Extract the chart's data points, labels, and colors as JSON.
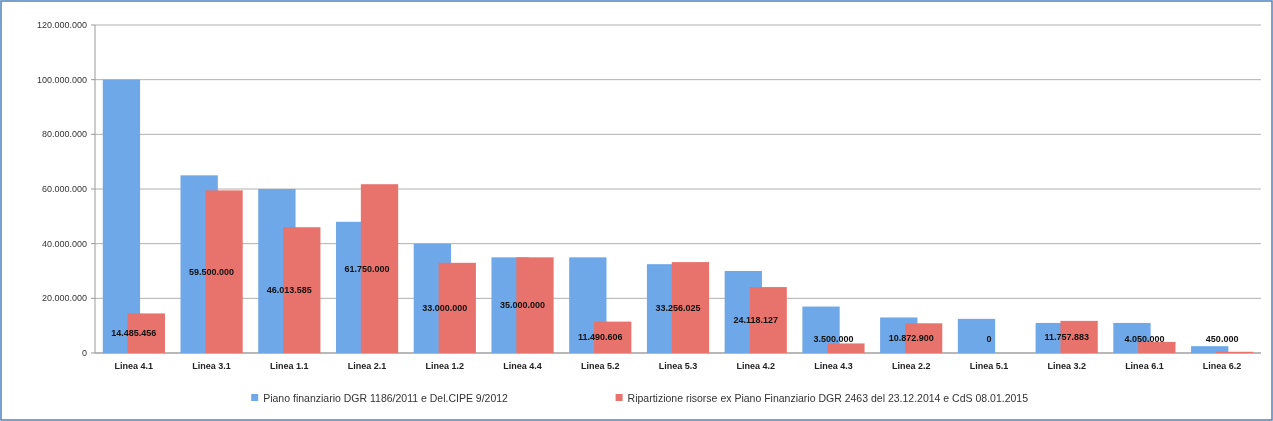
{
  "chart_data": {
    "type": "bar",
    "categories": [
      "Linea 4.1",
      "Linea 3.1",
      "Linea 1.1",
      "Linea 2.1",
      "Linea 1.2",
      "Linea 4.4",
      "Linea 5.2",
      "Linea 5.3",
      "Linea 4.2",
      "Linea 4.3",
      "Linea 2.2",
      "Linea 5.1",
      "Linea 3.2",
      "Linea 6.1",
      "Linea 6.2"
    ],
    "series": [
      {
        "name": "Piano finanziario DGR 1186/2011 e Del.CIPE 9/2012",
        "color": "#6fa8e8",
        "values": [
          100000000,
          65000000,
          60000000,
          48000000,
          40000000,
          35000000,
          35000000,
          32500000,
          30000000,
          17000000,
          13000000,
          12500000,
          11000000,
          11000000,
          2500000
        ]
      },
      {
        "name": "Ripartizione risorse ex Piano Finanziario DGR 2463 del 23.12.2014 e CdS 08.01.2015",
        "color": "#e8736c",
        "values": [
          14485456,
          59500000,
          46013585,
          61750000,
          33000000,
          35000000,
          11490606,
          33256025,
          24118127,
          3500000,
          10872900,
          0,
          11757883,
          4050000,
          450000
        ],
        "value_labels": [
          "14.485.456",
          "59.500.000",
          "46.013.585",
          "61.750.000",
          "33.000.000",
          "35.000.000",
          "11.490.606",
          "33.256.025",
          "24.118.127",
          "3.500.000",
          "10.872.900",
          "0",
          "11.757.883",
          "4.050.000",
          "450.000"
        ]
      }
    ],
    "ylim": [
      0,
      120000000
    ],
    "yticks": [
      {
        "value": 0,
        "label": "0"
      },
      {
        "value": 20000000,
        "label": "20.000.000"
      },
      {
        "value": 40000000,
        "label": "40.000.000"
      },
      {
        "value": 60000000,
        "label": "60.000.000"
      },
      {
        "value": 80000000,
        "label": "80.000.000"
      },
      {
        "value": 100000000,
        "label": "100.000.000"
      },
      {
        "value": 120000000,
        "label": "120.000.000"
      }
    ],
    "grid": "y",
    "legend": "bottom"
  }
}
